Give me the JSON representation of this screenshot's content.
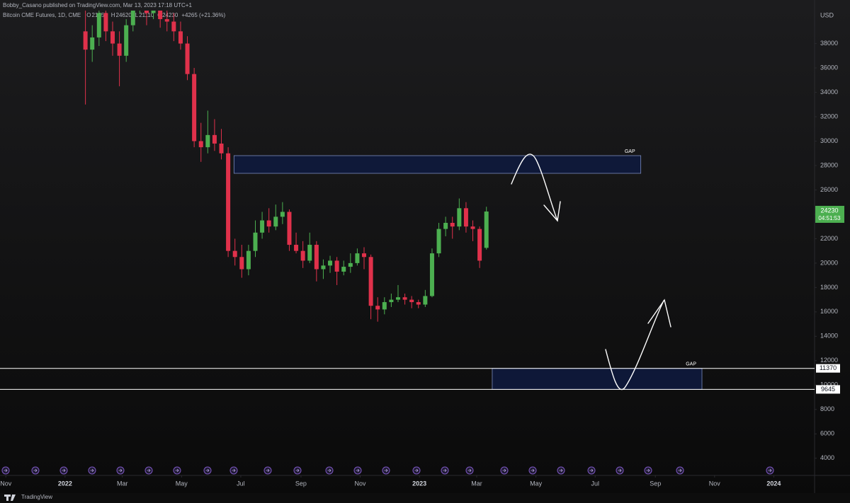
{
  "chart_data": {
    "type": "candlestick",
    "header": "Bobby_Casano published on TradingView.com, Mar 13, 2023 17:18 UTC+1",
    "legend": {
      "name": "Bitcoin CME Futures, 1D, CME",
      "items": [
        {
          "key": "O",
          "value": 21250
        },
        {
          "key": "H",
          "value": 24620
        },
        {
          "key": "L",
          "value": 21110
        },
        {
          "key": "C",
          "value": 24230
        }
      ],
      "change": "+4265 (+21.36%)"
    },
    "currency": "USD",
    "footer": "TradingView",
    "up_color": "#4caf50",
    "down_color": "#e0314b",
    "grid": false,
    "x": [
      82,
      89,
      96,
      103,
      110,
      117,
      124,
      131,
      138,
      145,
      152,
      159,
      166,
      173,
      180,
      187,
      194,
      201,
      208,
      215,
      222,
      229,
      236,
      243,
      250,
      257,
      264,
      271,
      278,
      285,
      292,
      299,
      306,
      313,
      320,
      327,
      334,
      341,
      348,
      355,
      362,
      369,
      376,
      383,
      390,
      397,
      404,
      411,
      418,
      425,
      432,
      439,
      446,
      453,
      460,
      467,
      474,
      481,
      488,
      495
    ],
    "open": [
      39000,
      37500,
      38500,
      40500,
      39000,
      38000,
      37000,
      39500,
      41000,
      41500,
      40500,
      41200,
      40000,
      39800,
      39000,
      38000,
      35500,
      30000,
      29500,
      30500,
      29800,
      29000,
      21000,
      20500,
      19500,
      21000,
      22500,
      23500,
      23000,
      23800,
      24200,
      21500,
      21000,
      20200,
      21500,
      19500,
      19800,
      20200,
      19300,
      19700,
      20000,
      20800,
      20500,
      16500,
      16200,
      16800,
      17000,
      17200,
      17000,
      16800,
      16600,
      17300,
      20800,
      22800,
      23300,
      23000,
      24500,
      23000,
      22800,
      21250
    ],
    "high": [
      41500,
      39500,
      41500,
      41000,
      39800,
      39000,
      40000,
      42000,
      43000,
      42000,
      42500,
      41800,
      41000,
      40500,
      39800,
      38600,
      36000,
      31500,
      32500,
      31800,
      31000,
      29500,
      22000,
      21500,
      21500,
      23500,
      24200,
      24500,
      24800,
      25000,
      24400,
      22500,
      21800,
      22500,
      21800,
      20300,
      20600,
      20500,
      20200,
      20800,
      21200,
      21300,
      20700,
      17200,
      17200,
      17500,
      18200,
      17500,
      17300,
      17000,
      17800,
      21200,
      23300,
      23800,
      23800,
      25300,
      25000,
      23500,
      23000,
      24620
    ],
    "low": [
      33000,
      36500,
      37800,
      38200,
      37000,
      34500,
      36500,
      39000,
      40500,
      39500,
      40000,
      39300,
      39000,
      38200,
      37500,
      35000,
      29500,
      28300,
      29000,
      29200,
      28500,
      20500,
      19800,
      18800,
      19000,
      20500,
      22000,
      22500,
      22700,
      23200,
      21000,
      20800,
      19600,
      20000,
      18500,
      18700,
      19200,
      18200,
      19000,
      19200,
      19800,
      19500,
      15400,
      15200,
      15800,
      16400,
      16800,
      16600,
      16300,
      16300,
      16400,
      17200,
      20500,
      22200,
      22000,
      22700,
      22500,
      21800,
      19600,
      21110
    ],
    "close": [
      37500,
      38500,
      40500,
      39000,
      38000,
      37000,
      39500,
      41000,
      41500,
      40500,
      41200,
      40000,
      39800,
      39000,
      38000,
      35500,
      30000,
      29500,
      30500,
      29800,
      29000,
      21000,
      20500,
      19500,
      21000,
      22500,
      23500,
      23000,
      23800,
      24200,
      21500,
      21000,
      20200,
      21500,
      19500,
      19800,
      20200,
      19300,
      19700,
      20000,
      20800,
      20500,
      16500,
      16200,
      16800,
      17000,
      17200,
      17000,
      16800,
      16600,
      17300,
      20800,
      22800,
      23300,
      23000,
      24500,
      23000,
      22800,
      20200,
      24230
    ],
    "xlim": [
      -6,
      833
    ],
    "xticks": [
      {
        "value": 0,
        "label": "Nov"
      },
      {
        "value": 61,
        "label": "2022"
      },
      {
        "value": 120,
        "label": "Mar"
      },
      {
        "value": 181,
        "label": "May"
      },
      {
        "value": 242,
        "label": "Jul"
      },
      {
        "value": 304,
        "label": "Sep"
      },
      {
        "value": 365,
        "label": "Nov"
      },
      {
        "value": 426,
        "label": "2023"
      },
      {
        "value": 485,
        "label": "Mar"
      },
      {
        "value": 546,
        "label": "May"
      },
      {
        "value": 607,
        "label": "Jul"
      },
      {
        "value": 669,
        "label": "Sep"
      },
      {
        "value": 730,
        "label": "Nov"
      },
      {
        "value": 791,
        "label": "2024"
      }
    ],
    "ylim": [
      3000,
      40700
    ],
    "yticks": [
      4000,
      6000,
      8000,
      10000,
      12000,
      14000,
      16000,
      18000,
      20000,
      22000,
      24000,
      26000,
      28000,
      30000,
      32000,
      34000,
      36000,
      38000
    ],
    "last_price": {
      "value": 24230,
      "countdown": "04:51:53"
    },
    "levels": [
      11370,
      9645
    ],
    "zones": [
      {
        "label": "GAP",
        "x": [
          235,
          654
        ],
        "y": [
          27360,
          28810
        ]
      },
      {
        "label": "GAP",
        "x": [
          501,
          717
        ],
        "y": [
          9645,
          11370
        ]
      }
    ]
  }
}
